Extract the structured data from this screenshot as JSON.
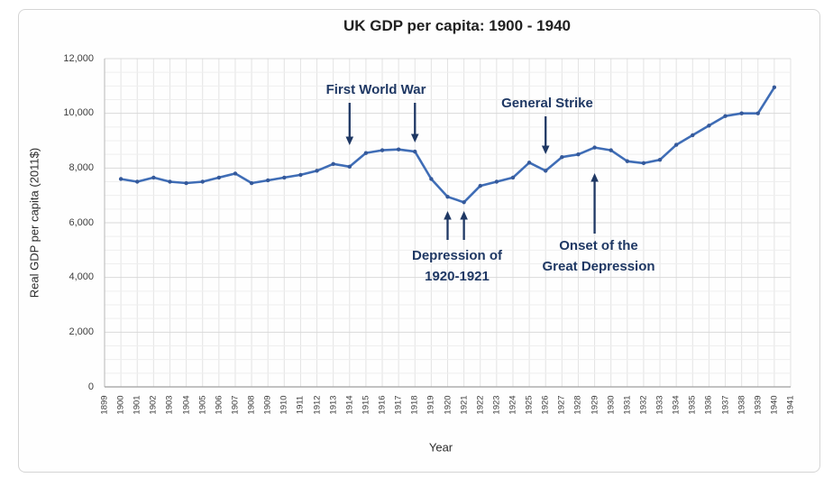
{
  "chart_data": {
    "type": "line",
    "title": "UK GDP per capita: 1900 - 1940",
    "xlabel": "Year",
    "ylabel": "Real GDP per capita (2011$)",
    "xlim": [
      1899,
      1941
    ],
    "ylim": [
      0,
      12000
    ],
    "x_ticks": [
      1899,
      1900,
      1901,
      1902,
      1903,
      1904,
      1905,
      1906,
      1907,
      1908,
      1909,
      1910,
      1911,
      1912,
      1913,
      1914,
      1915,
      1916,
      1917,
      1918,
      1919,
      1920,
      1921,
      1922,
      1923,
      1924,
      1925,
      1926,
      1927,
      1928,
      1929,
      1930,
      1931,
      1932,
      1933,
      1934,
      1935,
      1936,
      1937,
      1938,
      1939,
      1940,
      1941
    ],
    "y_ticks": [
      0,
      2000,
      4000,
      6000,
      8000,
      10000,
      12000
    ],
    "y_tick_labels": [
      "0",
      "2,000",
      "4,000",
      "6,000",
      "8,000",
      "10,000",
      "12,000"
    ],
    "grid": {
      "vertical_every_year": true,
      "horizontal_minor_step": 500,
      "horizontal_major_step": 2000
    },
    "series": [
      {
        "name": "UK real GDP per capita (2011$)",
        "x": [
          1900,
          1901,
          1902,
          1903,
          1904,
          1905,
          1906,
          1907,
          1908,
          1909,
          1910,
          1911,
          1912,
          1913,
          1914,
          1915,
          1916,
          1917,
          1918,
          1919,
          1920,
          1921,
          1922,
          1923,
          1924,
          1925,
          1926,
          1927,
          1928,
          1929,
          1930,
          1931,
          1932,
          1933,
          1934,
          1935,
          1936,
          1937,
          1938,
          1939,
          1940
        ],
        "y": [
          7600,
          7500,
          7650,
          7500,
          7450,
          7500,
          7650,
          7800,
          7450,
          7550,
          7650,
          7750,
          7900,
          8150,
          8050,
          8550,
          8650,
          8680,
          8600,
          7600,
          6950,
          6750,
          7350,
          7500,
          7650,
          8200,
          7900,
          8400,
          8500,
          8750,
          8650,
          8250,
          8180,
          8300,
          8850,
          9200,
          9550,
          9900,
          10000,
          10000,
          10950
        ]
      }
    ],
    "annotations": [
      {
        "id": "first-world-war",
        "lines": [
          "First World War"
        ],
        "arrow_direction": "down",
        "arrow_years": [
          1914,
          1918
        ]
      },
      {
        "id": "general-strike",
        "lines": [
          "General Strike"
        ],
        "arrow_direction": "down",
        "arrow_years": [
          1926
        ]
      },
      {
        "id": "depression-1920-1921",
        "lines": [
          "Depression of",
          "1920-1921"
        ],
        "arrow_direction": "up",
        "arrow_years": [
          1920,
          1921
        ]
      },
      {
        "id": "onset-great-depression",
        "lines": [
          "Onset of the",
          "Great Depression"
        ],
        "arrow_direction": "up",
        "arrow_years": [
          1929
        ]
      }
    ],
    "line_color": "#3f6db6",
    "marker_color": "#35599a",
    "annotation_color": "#1f3864"
  }
}
